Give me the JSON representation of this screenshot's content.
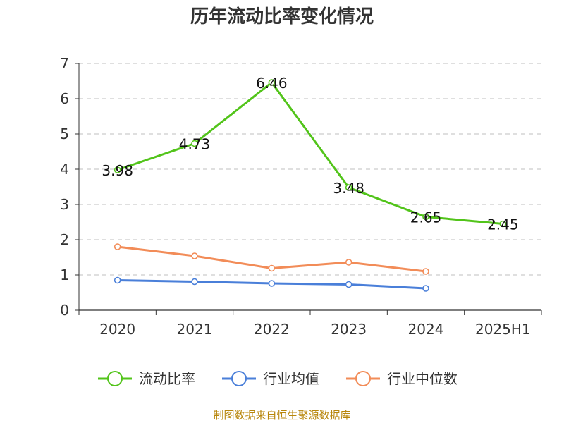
{
  "chart_data": {
    "type": "line",
    "title": "历年流动比率变化情况",
    "categories": [
      "2020",
      "2021",
      "2022",
      "2023",
      "2024",
      "2025H1"
    ],
    "ylim": [
      0,
      7
    ],
    "yticks": [
      "0",
      "1",
      "2",
      "3",
      "4",
      "5",
      "6",
      "7"
    ],
    "grid": true,
    "legend_position": "bottom",
    "series": [
      {
        "name": "流动比率",
        "color": "#52c41a",
        "values": [
          3.98,
          4.73,
          6.46,
          3.48,
          2.65,
          2.45
        ],
        "labels": [
          "3.98",
          "4.73",
          "6.46",
          "3.48",
          "2.65",
          "2.45"
        ]
      },
      {
        "name": "行业均值",
        "color": "#4a7fd9",
        "values": [
          0.85,
          0.81,
          0.76,
          0.73,
          0.62,
          null
        ]
      },
      {
        "name": "行业中位数",
        "color": "#f28c58",
        "values": [
          1.8,
          1.54,
          1.19,
          1.36,
          1.1,
          null
        ]
      }
    ],
    "source": "制图数据来自恒生聚源数据库"
  }
}
